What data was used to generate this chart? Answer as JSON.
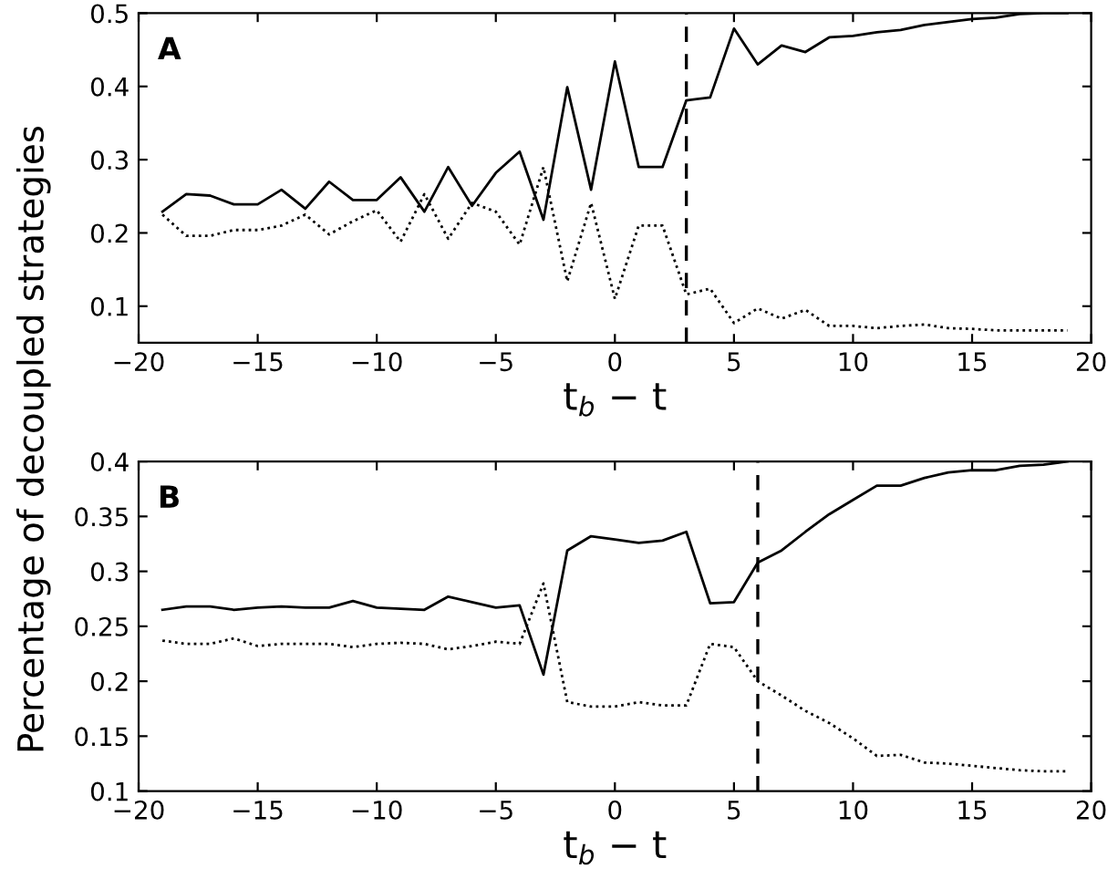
{
  "chart_data": [
    {
      "type": "line",
      "x": [
        -19,
        -18,
        -17,
        -16,
        -15,
        -14,
        -13,
        -12,
        -11,
        -10,
        -9,
        -8,
        -7,
        -6,
        -5,
        -4,
        -3,
        -2,
        -1,
        0,
        1,
        2,
        3,
        4,
        5,
        6,
        7,
        8,
        9,
        10,
        11,
        12,
        13,
        14,
        15,
        16,
        17,
        18,
        19
      ],
      "series": [
        {
          "color": "#000000",
          "line_style": "solid",
          "values": [
            0.229,
            0.253,
            0.251,
            0.239,
            0.239,
            0.259,
            0.233,
            0.27,
            0.245,
            0.245,
            0.276,
            0.229,
            0.29,
            0.237,
            0.282,
            0.311,
            0.218,
            0.399,
            0.259,
            0.434,
            0.29,
            0.29,
            0.381,
            0.385,
            0.479,
            0.43,
            0.456,
            0.447,
            0.467,
            0.469,
            0.474,
            0.477,
            0.484,
            0.488,
            0.492,
            0.494,
            0.499,
            0.5,
            0.5
          ]
        },
        {
          "color": "#000000",
          "line_style": "dotted",
          "values": [
            0.225,
            0.196,
            0.196,
            0.204,
            0.204,
            0.21,
            0.225,
            0.198,
            0.216,
            0.231,
            0.188,
            0.253,
            0.192,
            0.241,
            0.229,
            0.184,
            0.29,
            0.134,
            0.241,
            0.11,
            0.21,
            0.21,
            0.116,
            0.124,
            0.077,
            0.097,
            0.083,
            0.095,
            0.073,
            0.073,
            0.07,
            0.073,
            0.075,
            0.07,
            0.069,
            0.067,
            0.067,
            0.067,
            0.067
          ]
        }
      ],
      "xlabel": "t$_{b}$ − t",
      "ylabel": "Percentage of decoupled strategies",
      "xlim": [
        -20,
        20
      ],
      "xticks": [
        -20,
        -15,
        -10,
        -5,
        0,
        5,
        10,
        15,
        20
      ],
      "ylim": [
        0.05,
        0.5
      ],
      "yticks": [
        0.1,
        0.2,
        0.3,
        0.4,
        0.5
      ],
      "ref_lines": [
        {
          "axis": "x",
          "value": 3,
          "color": "#000000",
          "line_style": "dashed"
        }
      ],
      "annotations": [
        "A"
      ],
      "grid": false,
      "legend": false
    },
    {
      "type": "line",
      "x": [
        -19,
        -18,
        -17,
        -16,
        -15,
        -14,
        -13,
        -12,
        -11,
        -10,
        -9,
        -8,
        -7,
        -6,
        -5,
        -4,
        -3,
        -2,
        -1,
        0,
        1,
        2,
        3,
        4,
        5,
        6,
        7,
        8,
        9,
        10,
        11,
        12,
        13,
        14,
        15,
        16,
        17,
        18,
        19
      ],
      "series": [
        {
          "color": "#000000",
          "line_style": "solid",
          "values": [
            0.265,
            0.268,
            0.268,
            0.265,
            0.267,
            0.268,
            0.267,
            0.267,
            0.273,
            0.267,
            0.266,
            0.265,
            0.277,
            0.272,
            0.267,
            0.269,
            0.206,
            0.319,
            0.332,
            0.329,
            0.326,
            0.328,
            0.336,
            0.271,
            0.272,
            0.308,
            0.319,
            0.336,
            0.352,
            0.365,
            0.378,
            0.378,
            0.385,
            0.39,
            0.392,
            0.392,
            0.396,
            0.397,
            0.4
          ]
        },
        {
          "color": "#000000",
          "line_style": "dotted",
          "values": [
            0.237,
            0.234,
            0.234,
            0.239,
            0.232,
            0.234,
            0.234,
            0.234,
            0.231,
            0.234,
            0.235,
            0.234,
            0.229,
            0.232,
            0.236,
            0.234,
            0.289,
            0.181,
            0.177,
            0.177,
            0.181,
            0.178,
            0.178,
            0.234,
            0.231,
            0.2,
            0.187,
            0.173,
            0.162,
            0.148,
            0.132,
            0.133,
            0.126,
            0.125,
            0.123,
            0.121,
            0.119,
            0.118,
            0.118
          ]
        }
      ],
      "xlabel": "t$_{b}$ − t",
      "xlim": [
        -20,
        20
      ],
      "xticks": [
        -20,
        -15,
        -10,
        -5,
        0,
        5,
        10,
        15,
        20
      ],
      "ylim": [
        0.1,
        0.4
      ],
      "yticks": [
        0.1,
        0.15,
        0.2,
        0.25,
        0.3,
        0.35,
        0.4
      ],
      "ref_lines": [
        {
          "axis": "x",
          "value": 6,
          "color": "#000000",
          "line_style": "dashed"
        }
      ],
      "annotations": [
        "B"
      ],
      "grid": false,
      "legend": false
    }
  ]
}
